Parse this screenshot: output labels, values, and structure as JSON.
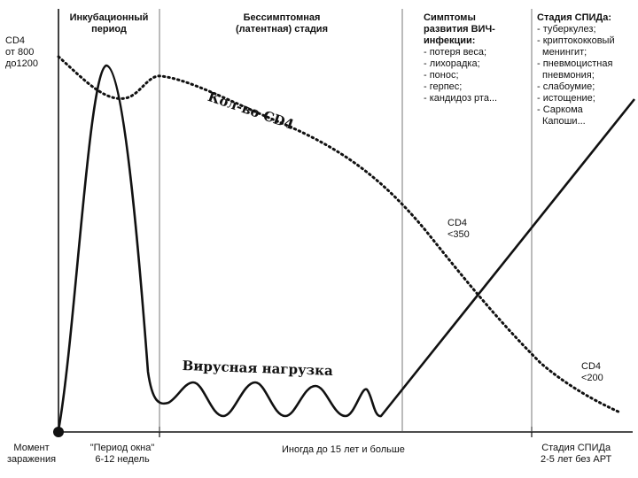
{
  "stages": [
    {
      "title": "Инкубационный период",
      "lines": [
        "Инкубационный",
        "период"
      ]
    },
    {
      "title": "Бессимптомная (латентная) стадия",
      "lines": [
        "Бессимптомная",
        "(латентная) стадия"
      ]
    },
    {
      "title": "Симптомы развития ВИЧ-инфекции:",
      "lines": [
        "Симптомы",
        "развития ВИЧ-",
        "инфекции:"
      ],
      "items": [
        "- потеря веса;",
        "- лихорадка;",
        "- понос;",
        "- герпес;",
        "- кандидоз рта..."
      ]
    },
    {
      "title": "Стадия СПИДа:",
      "lines": [
        "Стадия СПИДа:"
      ],
      "items": [
        "- туберкулез;",
        "- криптококковый",
        "  менингит;",
        "- пневмоцистная",
        "  пневмония;",
        "- слабоумие;",
        "- истощение;",
        "- Саркома",
        "  Капоши..."
      ]
    }
  ],
  "cd4_start": [
    "CD4",
    "от 800",
    "до1200"
  ],
  "cd4_350": [
    "CD4",
    "<350"
  ],
  "cd4_200": [
    "CD4",
    "<200"
  ],
  "curve_labels": {
    "cd4": "Кол-во CD4",
    "viral": "Вирусная нагрузка"
  },
  "bottom": {
    "infection": [
      "Момент",
      "заражения"
    ],
    "window": [
      "\"Период окна\"",
      "6-12 недель"
    ],
    "latent": "Иногда до 15 лет и больше",
    "aids": [
      "Стадия СПИДа",
      "2-5 лет без АРТ"
    ]
  },
  "colors": {
    "line": "#111111"
  }
}
